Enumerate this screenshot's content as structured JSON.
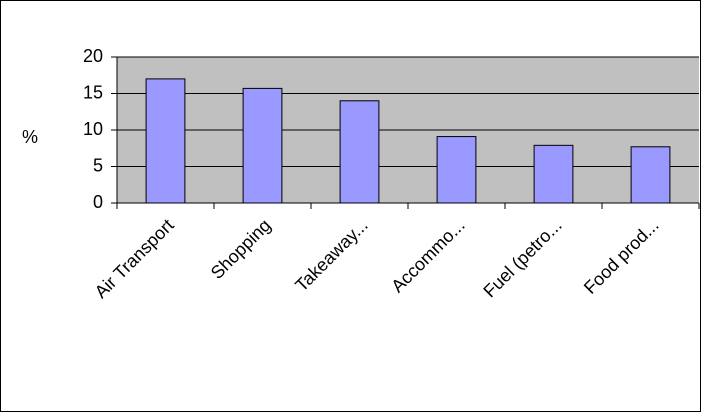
{
  "chart_data": {
    "type": "bar",
    "y_label": "%",
    "categories": [
      "Air Transport",
      "Shopping",
      "Takeaway...",
      "Accommo...",
      "Fuel (petro...",
      "Food prod..."
    ],
    "values": [
      17,
      15.7,
      14,
      9.1,
      7.9,
      7.7
    ],
    "color": "#9999ff",
    "ylim": [
      0,
      20
    ],
    "yticks": [
      0,
      5,
      10,
      15,
      20
    ],
    "grid": true
  }
}
